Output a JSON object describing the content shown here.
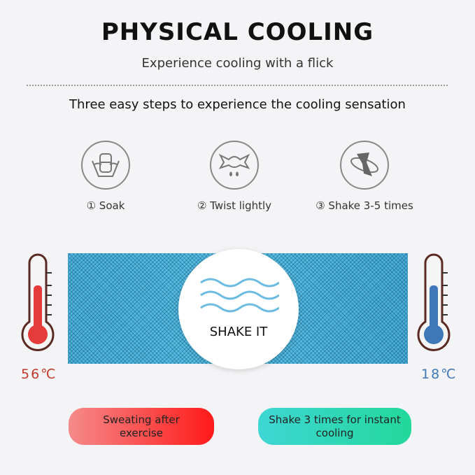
{
  "title": "PHYSICAL COOLING",
  "subtitle": "Experience cooling with a flick",
  "heading": "Three easy steps to experience the cooling sensation",
  "steps": [
    {
      "label": "① Soak",
      "icon": "soak-basin-icon"
    },
    {
      "label": "② Twist lightly",
      "icon": "twist-towel-icon"
    },
    {
      "label": "③ Shake 3-5 times",
      "icon": "shake-towel-icon"
    }
  ],
  "center_badge": "SHAKE IT",
  "temps": {
    "hot": "56℃",
    "cold": "18℃"
  },
  "pills": {
    "hot": "Sweating after exercise",
    "cold": "Shake 3 times for instant cooling"
  },
  "colors": {
    "hot": "#e63b3b",
    "cold": "#3f78b8",
    "towel": "#55b8e0",
    "pill_hot": "#ff1a1a",
    "pill_cold": "#22d89a"
  }
}
